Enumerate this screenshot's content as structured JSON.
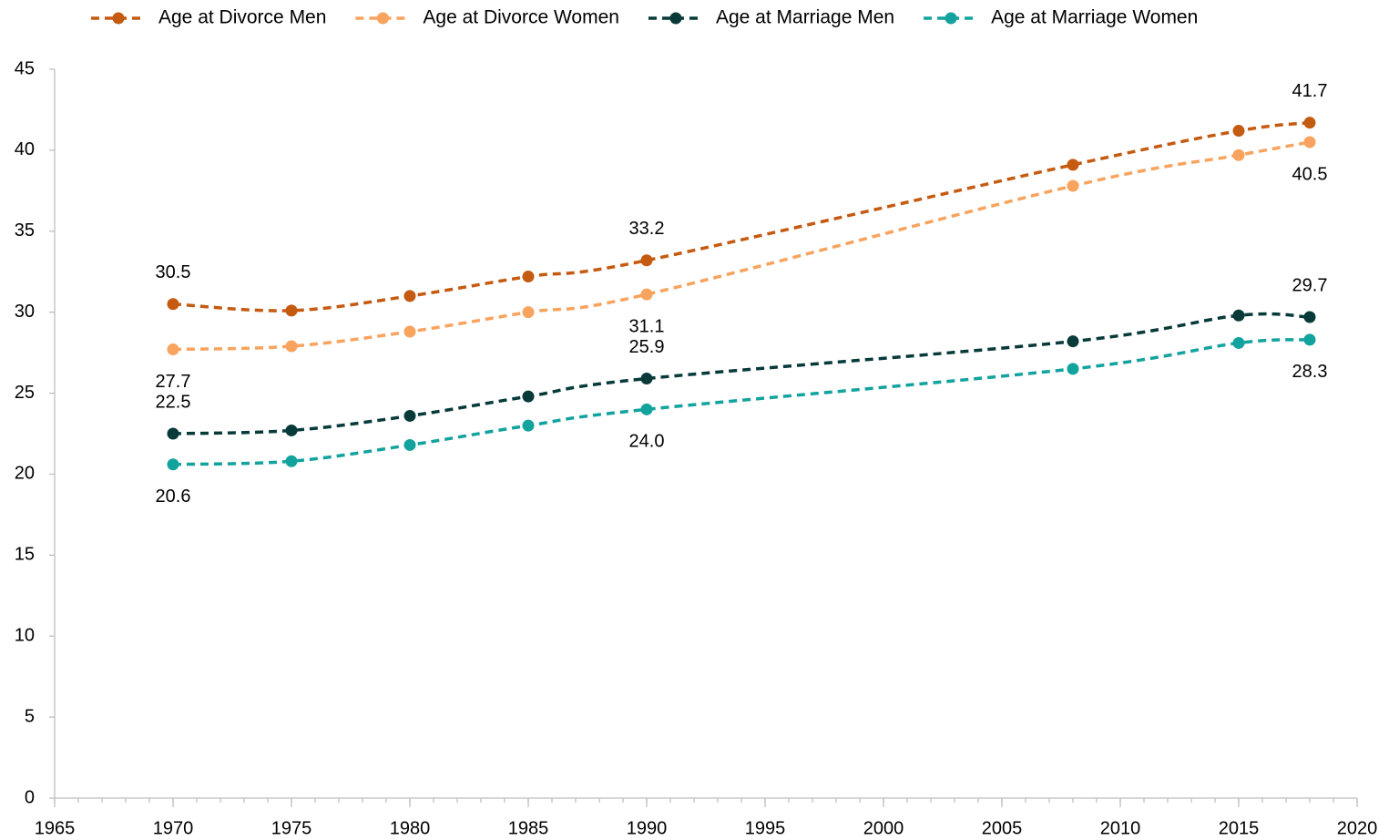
{
  "chart_data": {
    "type": "line",
    "x": [
      1970,
      1975,
      1980,
      1985,
      1990,
      2008,
      2015,
      2018
    ],
    "series": [
      {
        "name": "Age at Divorce Men",
        "color": "#c55a11",
        "values": [
          30.5,
          30.1,
          31.0,
          32.2,
          33.2,
          39.1,
          41.2,
          41.7
        ],
        "value_labels": [
          "30.5",
          null,
          null,
          null,
          "33.2",
          null,
          null,
          "41.7"
        ]
      },
      {
        "name": "Age at Divorce Women",
        "color": "#f8a35e",
        "values": [
          27.7,
          27.9,
          28.8,
          30.0,
          31.1,
          37.8,
          39.7,
          40.5
        ],
        "value_labels": [
          "27.7",
          null,
          null,
          null,
          "31.1",
          null,
          null,
          "40.5"
        ]
      },
      {
        "name": "Age at Marriage Men",
        "color": "#083a3a",
        "values": [
          22.5,
          22.7,
          23.6,
          24.8,
          25.9,
          28.2,
          29.8,
          29.7
        ],
        "value_labels": [
          "22.5",
          null,
          null,
          null,
          "25.9",
          null,
          null,
          "29.7"
        ]
      },
      {
        "name": "Age at Marriage Women",
        "color": "#12a39e",
        "values": [
          20.6,
          20.8,
          21.8,
          23.0,
          24.0,
          26.5,
          28.1,
          28.3
        ],
        "value_labels": [
          "20.6",
          null,
          null,
          null,
          "24.0",
          null,
          null,
          "28.3"
        ]
      }
    ],
    "xlim": [
      1965,
      2020
    ],
    "xticks": [
      1965,
      1970,
      1975,
      1980,
      1985,
      1990,
      1995,
      2000,
      2005,
      2010,
      2015,
      2020
    ],
    "ylim": [
      0,
      45
    ],
    "yticks": [
      0,
      5,
      10,
      15,
      20,
      25,
      30,
      35,
      40,
      45
    ],
    "grid": false,
    "legend": "top",
    "line_style": "dashed",
    "smooth": true
  }
}
